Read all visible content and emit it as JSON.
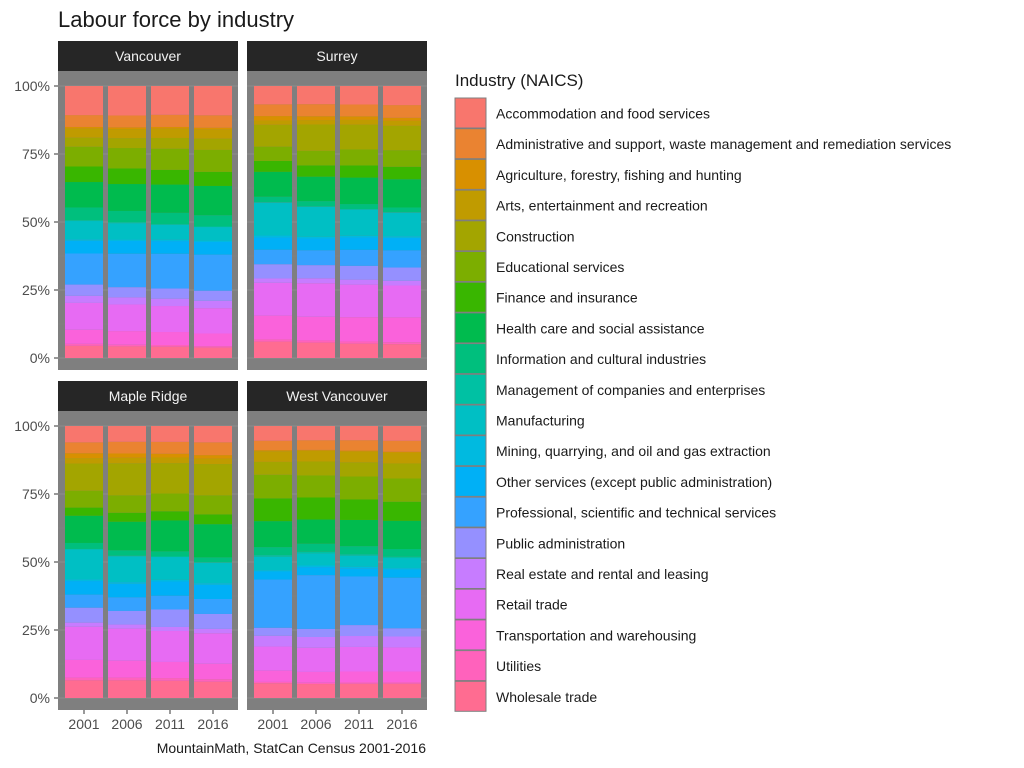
{
  "chart_data": {
    "type": "bar",
    "stacked": true,
    "normalized": true,
    "title": "Labour force by industry",
    "caption": "MountainMath, StatCan Census 2001-2016",
    "categories": [
      "2001",
      "2006",
      "2011",
      "2016"
    ],
    "y_ticks": [
      "0%",
      "25%",
      "50%",
      "75%",
      "100%"
    ],
    "ylim": [
      0,
      1
    ],
    "legend": {
      "title": "Industry (NAICS)",
      "position": "right",
      "entries": [
        {
          "name": "Accommodation and food services",
          "color": "#F8766D"
        },
        {
          "name": "Administrative and support, waste management and remediation services",
          "color": "#EA8331"
        },
        {
          "name": "Agriculture, forestry, fishing and hunting",
          "color": "#D89000"
        },
        {
          "name": "Arts, entertainment and recreation",
          "color": "#C09B00"
        },
        {
          "name": "Construction",
          "color": "#A3A500"
        },
        {
          "name": "Educational services",
          "color": "#7CAE00"
        },
        {
          "name": "Finance and insurance",
          "color": "#39B600"
        },
        {
          "name": "Health care and social assistance",
          "color": "#00BB4E"
        },
        {
          "name": "Information and cultural industries",
          "color": "#00BF7D"
        },
        {
          "name": "Management of companies and enterprises",
          "color": "#00C1A3"
        },
        {
          "name": "Manufacturing",
          "color": "#00BFC4"
        },
        {
          "name": "Mining, quarrying, and oil and gas extraction",
          "color": "#00BAE0"
        },
        {
          "name": "Other services (except public administration)",
          "color": "#00B0F6"
        },
        {
          "name": "Professional, scientific and technical services",
          "color": "#35A2FF"
        },
        {
          "name": "Public administration",
          "color": "#9590FF"
        },
        {
          "name": "Real estate and rental and leasing",
          "color": "#C77CFF"
        },
        {
          "name": "Retail trade",
          "color": "#E76BF3"
        },
        {
          "name": "Transportation and warehousing",
          "color": "#FA62DB"
        },
        {
          "name": "Utilities",
          "color": "#FF62BC"
        },
        {
          "name": "Wholesale trade",
          "color": "#FF6C91"
        }
      ]
    },
    "facets": [
      {
        "name": "Vancouver",
        "series": [
          [
            0.103,
            0.104,
            0.102,
            0.104
          ],
          [
            0.042,
            0.042,
            0.043,
            0.044
          ],
          [
            0.006,
            0.006,
            0.006,
            0.006
          ],
          [
            0.032,
            0.032,
            0.033,
            0.033
          ],
          [
            0.032,
            0.035,
            0.038,
            0.04
          ],
          [
            0.07,
            0.072,
            0.075,
            0.078
          ],
          [
            0.055,
            0.055,
            0.052,
            0.05
          ],
          [
            0.09,
            0.095,
            0.1,
            0.104
          ],
          [
            0.045,
            0.04,
            0.04,
            0.04
          ],
          [
            0.003,
            0.003,
            0.003,
            0.002
          ],
          [
            0.065,
            0.058,
            0.052,
            0.048
          ],
          [
            0.005,
            0.005,
            0.005,
            0.005
          ],
          [
            0.045,
            0.045,
            0.045,
            0.045
          ],
          [
            0.11,
            0.118,
            0.123,
            0.128
          ],
          [
            0.04,
            0.036,
            0.036,
            0.036
          ],
          [
            0.025,
            0.025,
            0.026,
            0.026
          ],
          [
            0.095,
            0.094,
            0.092,
            0.09
          ],
          [
            0.05,
            0.048,
            0.046,
            0.045
          ],
          [
            0.007,
            0.006,
            0.006,
            0.005
          ],
          [
            0.043,
            0.041,
            0.04,
            0.037
          ]
        ]
      },
      {
        "name": "Surrey",
        "series": [
          [
            0.067,
            0.066,
            0.067,
            0.069
          ],
          [
            0.043,
            0.044,
            0.043,
            0.046
          ],
          [
            0.016,
            0.014,
            0.013,
            0.011
          ],
          [
            0.016,
            0.016,
            0.017,
            0.018
          ],
          [
            0.08,
            0.096,
            0.09,
            0.088
          ],
          [
            0.052,
            0.053,
            0.058,
            0.06
          ],
          [
            0.04,
            0.041,
            0.044,
            0.045
          ],
          [
            0.091,
            0.089,
            0.096,
            0.102
          ],
          [
            0.02,
            0.019,
            0.018,
            0.017
          ],
          [
            0.002,
            0.002,
            0.002,
            0.002
          ],
          [
            0.12,
            0.109,
            0.095,
            0.085
          ],
          [
            0.007,
            0.006,
            0.006,
            0.006
          ],
          [
            0.045,
            0.043,
            0.045,
            0.045
          ],
          [
            0.053,
            0.054,
            0.058,
            0.062
          ],
          [
            0.052,
            0.048,
            0.05,
            0.048
          ],
          [
            0.016,
            0.018,
            0.018,
            0.017
          ],
          [
            0.12,
            0.122,
            0.118,
            0.115
          ],
          [
            0.087,
            0.086,
            0.088,
            0.09
          ],
          [
            0.008,
            0.008,
            0.008,
            0.007
          ],
          [
            0.06,
            0.056,
            0.052,
            0.05
          ]
        ]
      },
      {
        "name": "Maple Ridge",
        "series": [
          [
            0.06,
            0.058,
            0.059,
            0.06
          ],
          [
            0.04,
            0.043,
            0.044,
            0.047
          ],
          [
            0.018,
            0.016,
            0.014,
            0.013
          ],
          [
            0.02,
            0.02,
            0.021,
            0.02
          ],
          [
            0.1,
            0.118,
            0.113,
            0.115
          ],
          [
            0.062,
            0.064,
            0.066,
            0.07
          ],
          [
            0.03,
            0.033,
            0.034,
            0.036
          ],
          [
            0.1,
            0.105,
            0.115,
            0.122
          ],
          [
            0.022,
            0.02,
            0.019,
            0.018
          ],
          [
            0.002,
            0.002,
            0.002,
            0.002
          ],
          [
            0.11,
            0.095,
            0.085,
            0.075
          ],
          [
            0.006,
            0.006,
            0.006,
            0.006
          ],
          [
            0.05,
            0.05,
            0.053,
            0.052
          ],
          [
            0.048,
            0.05,
            0.051,
            0.055
          ],
          [
            0.055,
            0.05,
            0.065,
            0.055
          ],
          [
            0.015,
            0.015,
            0.015,
            0.016
          ],
          [
            0.122,
            0.118,
            0.115,
            0.112
          ],
          [
            0.065,
            0.062,
            0.06,
            0.057
          ],
          [
            0.01,
            0.01,
            0.01,
            0.009
          ],
          [
            0.065,
            0.065,
            0.064,
            0.06
          ]
        ]
      },
      {
        "name": "West Vancouver",
        "series": [
          [
            0.055,
            0.053,
            0.052,
            0.054
          ],
          [
            0.035,
            0.036,
            0.038,
            0.04
          ],
          [
            0.004,
            0.003,
            0.003,
            0.003
          ],
          [
            0.04,
            0.04,
            0.04,
            0.04
          ],
          [
            0.048,
            0.052,
            0.052,
            0.055
          ],
          [
            0.088,
            0.082,
            0.084,
            0.085
          ],
          [
            0.085,
            0.082,
            0.075,
            0.07
          ],
          [
            0.097,
            0.09,
            0.096,
            0.103
          ],
          [
            0.03,
            0.03,
            0.03,
            0.028
          ],
          [
            0.006,
            0.006,
            0.005,
            0.005
          ],
          [
            0.05,
            0.045,
            0.04,
            0.037
          ],
          [
            0.005,
            0.006,
            0.006,
            0.005
          ],
          [
            0.03,
            0.03,
            0.03,
            0.03
          ],
          [
            0.18,
            0.2,
            0.178,
            0.185
          ],
          [
            0.03,
            0.03,
            0.04,
            0.03
          ],
          [
            0.04,
            0.04,
            0.04,
            0.04
          ],
          [
            0.09,
            0.09,
            0.09,
            0.088
          ],
          [
            0.042,
            0.04,
            0.04,
            0.04
          ],
          [
            0.005,
            0.005,
            0.005,
            0.005
          ],
          [
            0.055,
            0.052,
            0.052,
            0.052
          ]
        ]
      }
    ]
  }
}
